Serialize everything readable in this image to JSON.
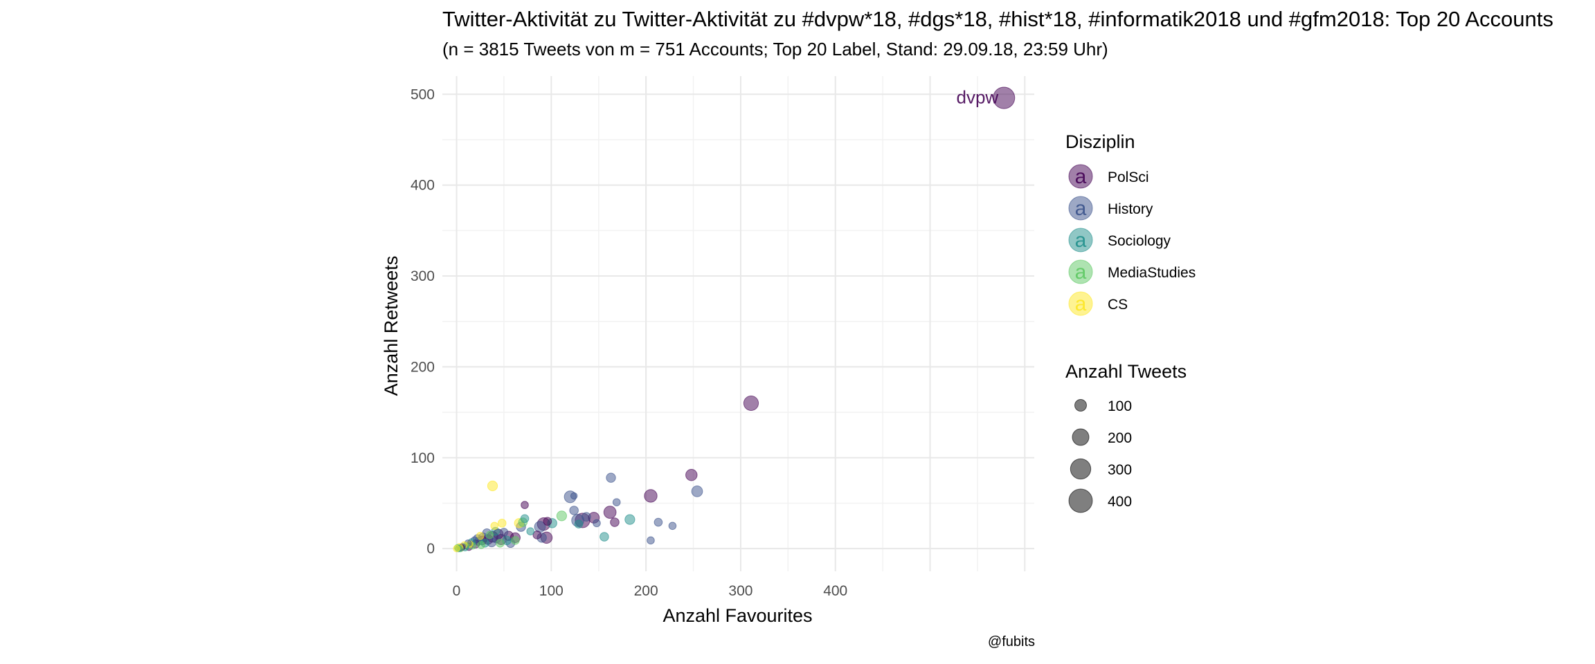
{
  "chart_data": {
    "type": "scatter",
    "title": "Twitter-Aktivität zu Twitter-Aktivität zu #dvpw*18, #dgs*18, #hist*18, #informatik2018 und #gfm2018: Top 20 Accounts",
    "subtitle": "(n = 3815 Tweets von m = 751 Accounts; Top 20 Label, Stand: 29.09.18, 23:59 Uhr)",
    "caption": "@fubits",
    "xlabel": "Anzahl Favourites",
    "ylabel": "Anzahl Retweets",
    "xlim": [
      -15,
      610
    ],
    "ylim": [
      -25,
      520
    ],
    "x_ticks": [
      0,
      100,
      200,
      300,
      400
    ],
    "x_grid_major": [
      0,
      100,
      200,
      300,
      400,
      500,
      600
    ],
    "y_ticks": [
      0,
      100,
      200,
      300,
      400,
      500
    ],
    "grid": true,
    "legend_color": {
      "title": "Disziplin",
      "entries": [
        {
          "label": "PolSci",
          "color": "#440154"
        },
        {
          "label": "History",
          "color": "#3B528B"
        },
        {
          "label": "Sociology",
          "color": "#21908C"
        },
        {
          "label": "MediaStudies",
          "color": "#5DC863"
        },
        {
          "label": "CS",
          "color": "#FDE725"
        }
      ],
      "key_glyph": "a"
    },
    "legend_size": {
      "title": "Anzahl Tweets",
      "entries": [
        {
          "label": "100",
          "value": 100
        },
        {
          "label": "200",
          "value": 200
        },
        {
          "label": "300",
          "value": 300
        },
        {
          "label": "400",
          "value": 400
        }
      ]
    },
    "annotations": [
      {
        "text": "dvpw",
        "x": 578,
        "y": 496,
        "color": "#440154"
      }
    ],
    "points": [
      {
        "x": 578,
        "y": 496,
        "cat": "PolSci",
        "n": 430
      },
      {
        "x": 311,
        "y": 160,
        "cat": "PolSci",
        "n": 200
      },
      {
        "x": 248,
        "y": 81,
        "cat": "PolSci",
        "n": 120
      },
      {
        "x": 254,
        "y": 63,
        "cat": "History",
        "n": 110
      },
      {
        "x": 205,
        "y": 58,
        "cat": "PolSci",
        "n": 150
      },
      {
        "x": 163,
        "y": 78,
        "cat": "History",
        "n": 80
      },
      {
        "x": 169,
        "y": 51,
        "cat": "History",
        "n": 50
      },
      {
        "x": 120,
        "y": 57,
        "cat": "History",
        "n": 130
      },
      {
        "x": 124,
        "y": 58,
        "cat": "History",
        "n": 40
      },
      {
        "x": 72,
        "y": 48,
        "cat": "PolSci",
        "n": 50
      },
      {
        "x": 38,
        "y": 69,
        "cat": "CS",
        "n": 90
      },
      {
        "x": 162,
        "y": 40,
        "cat": "PolSci",
        "n": 140
      },
      {
        "x": 183,
        "y": 32,
        "cat": "Sociology",
        "n": 90
      },
      {
        "x": 213,
        "y": 29,
        "cat": "History",
        "n": 60
      },
      {
        "x": 228,
        "y": 25,
        "cat": "History",
        "n": 50
      },
      {
        "x": 167,
        "y": 29,
        "cat": "PolSci",
        "n": 70
      },
      {
        "x": 145,
        "y": 34,
        "cat": "PolSci",
        "n": 110
      },
      {
        "x": 148,
        "y": 28,
        "cat": "History",
        "n": 50
      },
      {
        "x": 137,
        "y": 35,
        "cat": "History",
        "n": 70
      },
      {
        "x": 133,
        "y": 31,
        "cat": "PolSci",
        "n": 200
      },
      {
        "x": 128,
        "y": 31,
        "cat": "History",
        "n": 140
      },
      {
        "x": 124,
        "y": 42,
        "cat": "History",
        "n": 70
      },
      {
        "x": 129,
        "y": 27,
        "cat": "Sociology",
        "n": 60
      },
      {
        "x": 111,
        "y": 36,
        "cat": "MediaStudies",
        "n": 90
      },
      {
        "x": 101,
        "y": 28,
        "cat": "Sociology",
        "n": 80
      },
      {
        "x": 92,
        "y": 27,
        "cat": "PolSci",
        "n": 150
      },
      {
        "x": 96,
        "y": 30,
        "cat": "PolSci",
        "n": 60
      },
      {
        "x": 88,
        "y": 24,
        "cat": "History",
        "n": 110
      },
      {
        "x": 205,
        "y": 9,
        "cat": "History",
        "n": 50
      },
      {
        "x": 156,
        "y": 13,
        "cat": "Sociology",
        "n": 70
      },
      {
        "x": 95,
        "y": 12,
        "cat": "PolSci",
        "n": 120
      },
      {
        "x": 90,
        "y": 12,
        "cat": "History",
        "n": 80
      },
      {
        "x": 85,
        "y": 15,
        "cat": "PolSci",
        "n": 60
      },
      {
        "x": 78,
        "y": 19,
        "cat": "Sociology",
        "n": 50
      },
      {
        "x": 72,
        "y": 33,
        "cat": "Sociology",
        "n": 60
      },
      {
        "x": 70,
        "y": 29,
        "cat": "MediaStudies",
        "n": 70
      },
      {
        "x": 68,
        "y": 24,
        "cat": "History",
        "n": 80
      },
      {
        "x": 66,
        "y": 28,
        "cat": "CS",
        "n": 80
      },
      {
        "x": 62,
        "y": 12,
        "cat": "PolSci",
        "n": 90
      },
      {
        "x": 62,
        "y": 9,
        "cat": "MediaStudies",
        "n": 60
      },
      {
        "x": 57,
        "y": 6,
        "cat": "History",
        "n": 70
      },
      {
        "x": 55,
        "y": 14,
        "cat": "PolSci",
        "n": 80
      },
      {
        "x": 53,
        "y": 9,
        "cat": "Sociology",
        "n": 70
      },
      {
        "x": 50,
        "y": 18,
        "cat": "History",
        "n": 60
      },
      {
        "x": 48,
        "y": 28,
        "cat": "CS",
        "n": 60
      },
      {
        "x": 47,
        "y": 10,
        "cat": "PolSci",
        "n": 100
      },
      {
        "x": 46,
        "y": 6,
        "cat": "MediaStudies",
        "n": 60
      },
      {
        "x": 44,
        "y": 16,
        "cat": "PolSci",
        "n": 90
      },
      {
        "x": 42,
        "y": 11,
        "cat": "History",
        "n": 70
      },
      {
        "x": 41,
        "y": 19,
        "cat": "Sociology",
        "n": 60
      },
      {
        "x": 40,
        "y": 25,
        "cat": "CS",
        "n": 50
      },
      {
        "x": 38,
        "y": 13,
        "cat": "PolSci",
        "n": 110
      },
      {
        "x": 37,
        "y": 7,
        "cat": "History",
        "n": 80
      },
      {
        "x": 35,
        "y": 15,
        "cat": "MediaStudies",
        "n": 50
      },
      {
        "x": 33,
        "y": 10,
        "cat": "PolSci",
        "n": 90
      },
      {
        "x": 32,
        "y": 17,
        "cat": "History",
        "n": 70
      },
      {
        "x": 30,
        "y": 6,
        "cat": "Sociology",
        "n": 60
      },
      {
        "x": 28,
        "y": 12,
        "cat": "History",
        "n": 80
      },
      {
        "x": 27,
        "y": 9,
        "cat": "PolSci",
        "n": 70
      },
      {
        "x": 26,
        "y": 4,
        "cat": "MediaStudies",
        "n": 50
      },
      {
        "x": 25,
        "y": 14,
        "cat": "CS",
        "n": 50
      },
      {
        "x": 23,
        "y": 8,
        "cat": "Sociology",
        "n": 60
      },
      {
        "x": 22,
        "y": 11,
        "cat": "History",
        "n": 60
      },
      {
        "x": 20,
        "y": 5,
        "cat": "PolSci",
        "n": 60
      },
      {
        "x": 19,
        "y": 9,
        "cat": "History",
        "n": 50
      },
      {
        "x": 17,
        "y": 3,
        "cat": "MediaStudies",
        "n": 40
      },
      {
        "x": 16,
        "y": 7,
        "cat": "Sociology",
        "n": 50
      },
      {
        "x": 14,
        "y": 5,
        "cat": "CS",
        "n": 40
      },
      {
        "x": 13,
        "y": 2,
        "cat": "PolSci",
        "n": 50
      },
      {
        "x": 12,
        "y": 6,
        "cat": "History",
        "n": 40
      },
      {
        "x": 10,
        "y": 3,
        "cat": "MediaStudies",
        "n": 40
      },
      {
        "x": 9,
        "y": 1,
        "cat": "Sociology",
        "n": 40
      },
      {
        "x": 8,
        "y": 4,
        "cat": "CS",
        "n": 40
      },
      {
        "x": 6,
        "y": 2,
        "cat": "History",
        "n": 40
      },
      {
        "x": 5,
        "y": 1,
        "cat": "PolSci",
        "n": 40
      },
      {
        "x": 4,
        "y": 0,
        "cat": "MediaStudies",
        "n": 40
      },
      {
        "x": 3,
        "y": 2,
        "cat": "CS",
        "n": 40
      },
      {
        "x": 2,
        "y": 0,
        "cat": "Sociology",
        "n": 40
      },
      {
        "x": 1,
        "y": 1,
        "cat": "MediaStudies",
        "n": 40
      },
      {
        "x": 0,
        "y": 0,
        "cat": "CS",
        "n": 40
      }
    ]
  }
}
